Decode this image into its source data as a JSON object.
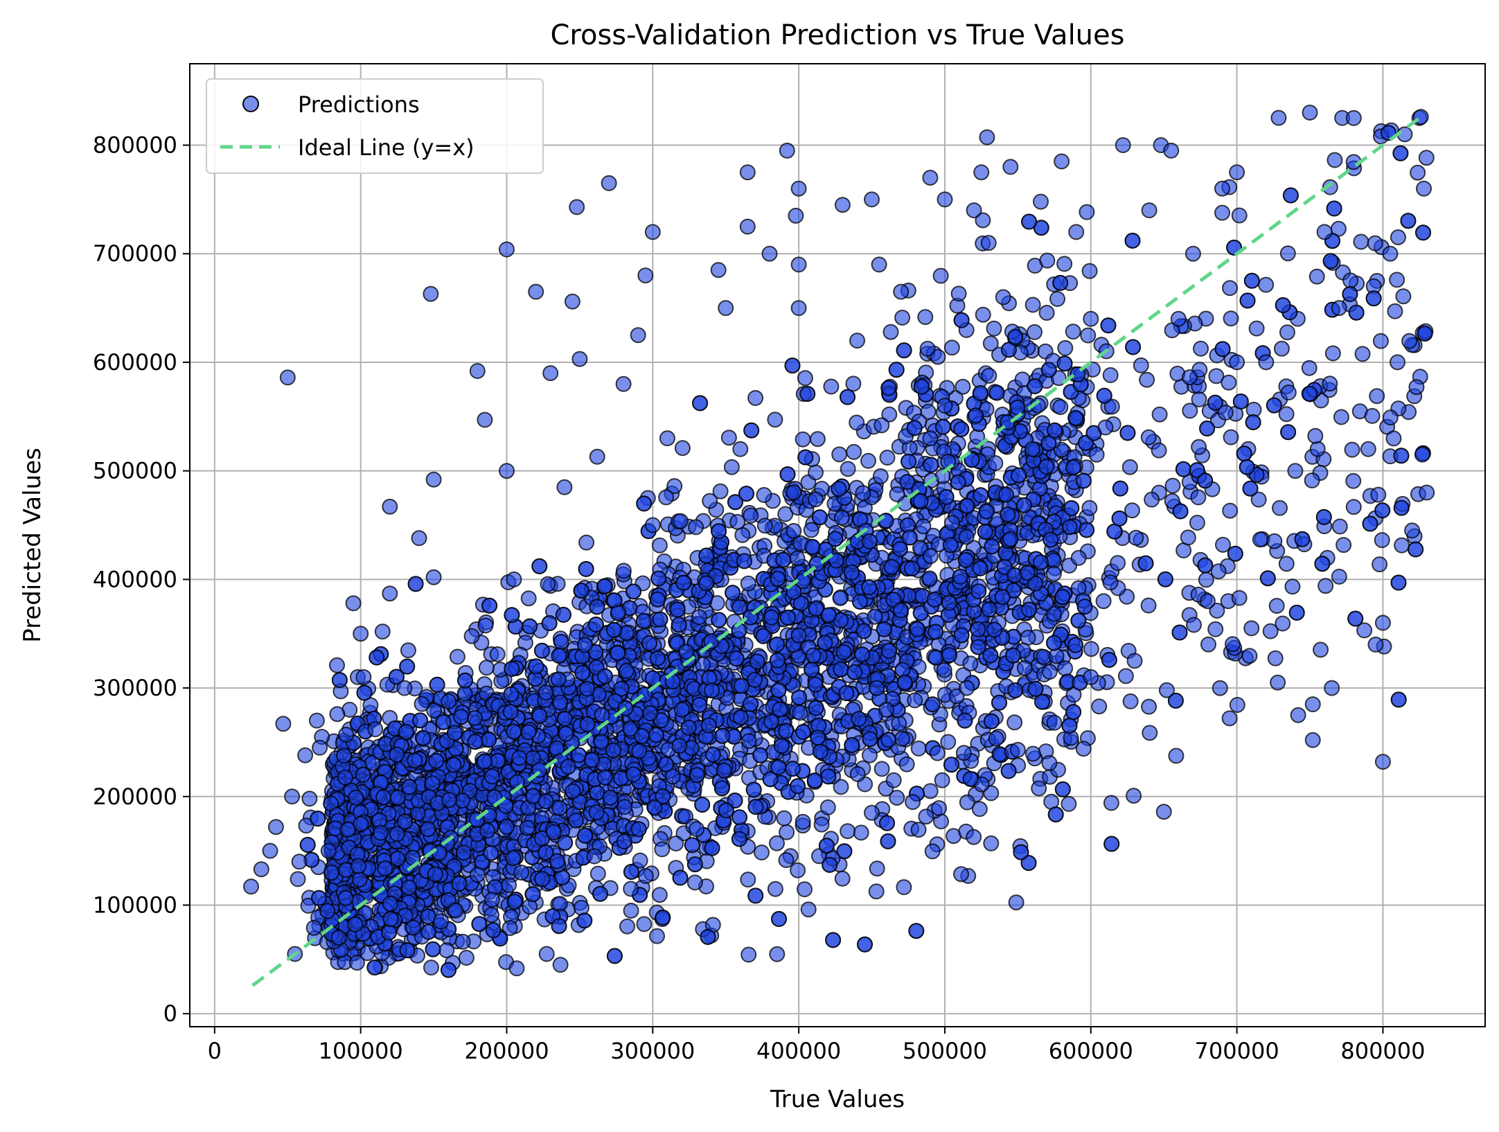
{
  "chart_data": {
    "type": "scatter",
    "title": "Cross-Validation Prediction vs True Values",
    "xlabel": "True Values",
    "ylabel": "Predicted Values",
    "xlim": [
      -17000,
      870000
    ],
    "ylim": [
      -12000,
      875000
    ],
    "x_ticks": [
      0,
      100000,
      200000,
      300000,
      400000,
      500000,
      600000,
      700000,
      800000
    ],
    "x_tick_labels": [
      "0",
      "100000",
      "200000",
      "300000",
      "400000",
      "500000",
      "600000",
      "700000",
      "800000"
    ],
    "y_ticks": [
      0,
      100000,
      200000,
      300000,
      400000,
      500000,
      600000,
      700000,
      800000
    ],
    "y_tick_labels": [
      "0",
      "100000",
      "200000",
      "300000",
      "400000",
      "500000",
      "600000",
      "700000",
      "800000"
    ],
    "grid": true,
    "legend_position": "top-left",
    "series": [
      {
        "name": "Predictions",
        "kind": "scatter",
        "color": "#1f45e0",
        "edge_color": "#000000",
        "alpha": 0.6,
        "points": [
          [
            25000,
            117000
          ],
          [
            32000,
            133000
          ],
          [
            38000,
            150000
          ],
          [
            42000,
            172000
          ],
          [
            47000,
            267000
          ],
          [
            50000,
            586000
          ],
          [
            53000,
            200000
          ],
          [
            55000,
            55000
          ],
          [
            57000,
            124000
          ],
          [
            58000,
            140000
          ],
          [
            62000,
            238000
          ],
          [
            65000,
            198000
          ],
          [
            68000,
            79000
          ],
          [
            70000,
            270000
          ],
          [
            72000,
            245000
          ],
          [
            78000,
            150000
          ],
          [
            80000,
            130000
          ],
          [
            84000,
            276000
          ],
          [
            85000,
            70000
          ],
          [
            90000,
            257000
          ],
          [
            95000,
            378000
          ],
          [
            98000,
            310000
          ],
          [
            100000,
            350000
          ],
          [
            102000,
            310000
          ],
          [
            110000,
            262000
          ],
          [
            115000,
            352000
          ],
          [
            120000,
            387000
          ],
          [
            120000,
            467000
          ],
          [
            130000,
            300000
          ],
          [
            140000,
            438000
          ],
          [
            148000,
            663000
          ],
          [
            150000,
            492000
          ],
          [
            150000,
            402000
          ],
          [
            155000,
            85000
          ],
          [
            165000,
            95000
          ],
          [
            180000,
            592000
          ],
          [
            180000,
            128000
          ],
          [
            185000,
            547000
          ],
          [
            190000,
            105000
          ],
          [
            200000,
            500000
          ],
          [
            200000,
            704000
          ],
          [
            205000,
            400000
          ],
          [
            210000,
            130000
          ],
          [
            218000,
            110000
          ],
          [
            220000,
            665000
          ],
          [
            230000,
            590000
          ],
          [
            245000,
            656000
          ],
          [
            248000,
            743000
          ],
          [
            250000,
            603000
          ],
          [
            260000,
            145000
          ],
          [
            262000,
            513000
          ],
          [
            270000,
            765000
          ],
          [
            280000,
            580000
          ],
          [
            285000,
            115000
          ],
          [
            290000,
            625000
          ],
          [
            295000,
            680000
          ],
          [
            300000,
            720000
          ],
          [
            300000,
            450000
          ],
          [
            310000,
            530000
          ],
          [
            320000,
            280000
          ],
          [
            330000,
            170000
          ],
          [
            345000,
            685000
          ],
          [
            350000,
            650000
          ],
          [
            360000,
            520000
          ],
          [
            365000,
            775000
          ],
          [
            365000,
            725000
          ],
          [
            380000,
            700000
          ],
          [
            385000,
            157000
          ],
          [
            390000,
            180000
          ],
          [
            392000,
            795000
          ],
          [
            398000,
            735000
          ],
          [
            400000,
            760000
          ],
          [
            400000,
            690000
          ],
          [
            400000,
            650000
          ],
          [
            410000,
            330000
          ],
          [
            420000,
            190000
          ],
          [
            430000,
            745000
          ],
          [
            440000,
            620000
          ],
          [
            450000,
            750000
          ],
          [
            450000,
            185000
          ],
          [
            455000,
            690000
          ],
          [
            460000,
            280000
          ],
          [
            465000,
            215000
          ],
          [
            470000,
            665000
          ],
          [
            478000,
            195000
          ],
          [
            490000,
            770000
          ],
          [
            495000,
            240000
          ],
          [
            500000,
            750000
          ],
          [
            500000,
            560000
          ],
          [
            505000,
            452000
          ],
          [
            515000,
            300000
          ],
          [
            520000,
            740000
          ],
          [
            525000,
            775000
          ],
          [
            530000,
            710000
          ],
          [
            540000,
            660000
          ],
          [
            545000,
            780000
          ],
          [
            550000,
            243000
          ],
          [
            560000,
            520000
          ],
          [
            575000,
            268000
          ],
          [
            580000,
            785000
          ],
          [
            590000,
            720000
          ],
          [
            595000,
            244000
          ],
          [
            600000,
            640000
          ],
          [
            600000,
            310000
          ],
          [
            610000,
            540000
          ],
          [
            622000,
            800000
          ],
          [
            630000,
            325000
          ],
          [
            640000,
            740000
          ],
          [
            648000,
            800000
          ],
          [
            650000,
            186000
          ],
          [
            652000,
            298000
          ],
          [
            655000,
            795000
          ],
          [
            660000,
            640000
          ],
          [
            670000,
            700000
          ],
          [
            680000,
            380000
          ],
          [
            690000,
            760000
          ],
          [
            695000,
            272000
          ],
          [
            700000,
            775000
          ],
          [
            700000,
            600000
          ],
          [
            710000,
            355000
          ],
          [
            720000,
            600000
          ],
          [
            728000,
            305000
          ],
          [
            740000,
            500000
          ],
          [
            742000,
            275000
          ],
          [
            750000,
            830000
          ],
          [
            752000,
            285000
          ],
          [
            752000,
            252000
          ],
          [
            760000,
            720000
          ],
          [
            765000,
            300000
          ],
          [
            770000,
            650000
          ],
          [
            780000,
            825000
          ],
          [
            790000,
            520000
          ],
          [
            795000,
            340000
          ],
          [
            800000,
            232000
          ],
          [
            800000,
            360000
          ],
          [
            805000,
            700000
          ],
          [
            810000,
            600000
          ],
          [
            815000,
            810000
          ],
          [
            820000,
            445000
          ],
          [
            825000,
            825000
          ],
          [
            826000,
            826000
          ],
          [
            827000,
            515000
          ],
          [
            828000,
            760000
          ],
          [
            830000,
            480000
          ]
        ],
        "dense_band": {
          "x_range": [
            60000,
            830000
          ],
          "description_only": false
        }
      },
      {
        "name": "Ideal Line (y=x)",
        "kind": "line",
        "color": "#5fd68a",
        "dash": "dashed",
        "x": [
          26000,
          828000
        ],
        "y": [
          26000,
          828000
        ]
      }
    ]
  }
}
